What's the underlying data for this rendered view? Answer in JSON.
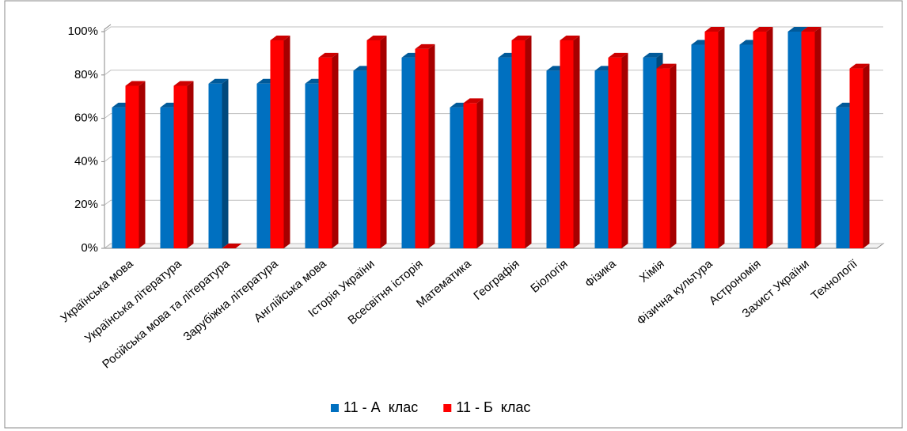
{
  "chart_data": {
    "type": "bar",
    "categories": [
      "Українська мова",
      "Українська література",
      "Російська мова та література",
      "Зарубіжна література",
      "Англійська мова",
      "Історія України",
      "Всесвітня історія",
      "Математика",
      "Географія",
      "Біологія",
      "Фізика",
      "Хімія",
      "Фізична культура",
      "Астрономія",
      "Захист України",
      "Технології"
    ],
    "series": [
      {
        "name": "11 - А  клас",
        "color": "#0070c0",
        "values": [
          65,
          65,
          76,
          76,
          76,
          82,
          88,
          65,
          88,
          82,
          82,
          88,
          94,
          94,
          100,
          65
        ]
      },
      {
        "name": "11 - Б  клас",
        "color": "#ff0000",
        "values": [
          75,
          75,
          0,
          96,
          88,
          96,
          92,
          67,
          96,
          96,
          88,
          83,
          100,
          100,
          100,
          83
        ]
      }
    ],
    "ylim": [
      0,
      100
    ],
    "yticks": [
      {
        "value": 0,
        "label": "0%"
      },
      {
        "value": 20,
        "label": "20%"
      },
      {
        "value": 40,
        "label": "40%"
      },
      {
        "value": 60,
        "label": "60%"
      },
      {
        "value": 80,
        "label": "80%"
      },
      {
        "value": 100,
        "label": "100%"
      }
    ],
    "grid": true,
    "legend": "bottom"
  }
}
